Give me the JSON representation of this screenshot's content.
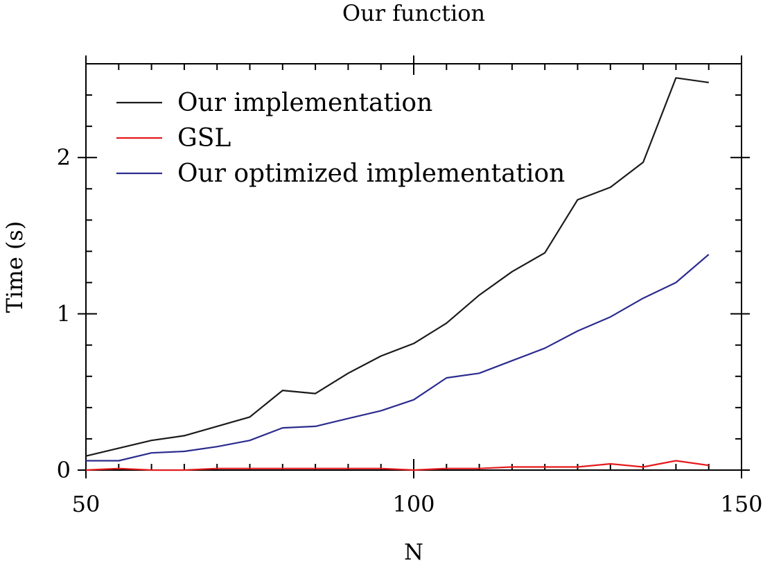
{
  "chart_data": {
    "type": "line",
    "title": "Our function",
    "xlabel": "N",
    "ylabel": "Time (s)",
    "xlim": [
      50,
      150
    ],
    "ylim": [
      0,
      2.6
    ],
    "xticks": [
      50,
      100,
      150
    ],
    "yticks": [
      0,
      1,
      2
    ],
    "x_minor_step": 5,
    "y_minor_step": 0.2,
    "grid": false,
    "legend_position": "top-left",
    "x": [
      50,
      55,
      60,
      65,
      70,
      75,
      80,
      85,
      90,
      95,
      100,
      105,
      110,
      115,
      120,
      125,
      130,
      135,
      140,
      145
    ],
    "series": [
      {
        "name": "Our implementation",
        "color": "#1a1a1a",
        "values": [
          0.09,
          0.14,
          0.19,
          0.22,
          0.28,
          0.34,
          0.51,
          0.49,
          0.62,
          0.73,
          0.81,
          0.94,
          1.12,
          1.27,
          1.39,
          1.73,
          1.81,
          1.97,
          2.51,
          2.48
        ]
      },
      {
        "name": "GSL",
        "color": "#e41a1c",
        "values": [
          0.0,
          0.01,
          0.0,
          0.0,
          0.01,
          0.01,
          0.01,
          0.01,
          0.01,
          0.01,
          0.0,
          0.01,
          0.01,
          0.02,
          0.02,
          0.02,
          0.04,
          0.02,
          0.06,
          0.03
        ]
      },
      {
        "name": "Our optimized implementation",
        "color": "#2b2b8e",
        "values": [
          0.06,
          0.06,
          0.11,
          0.12,
          0.15,
          0.19,
          0.27,
          0.28,
          0.33,
          0.38,
          0.45,
          0.59,
          0.62,
          0.7,
          0.78,
          0.89,
          0.98,
          1.1,
          1.2,
          1.38
        ]
      }
    ]
  }
}
